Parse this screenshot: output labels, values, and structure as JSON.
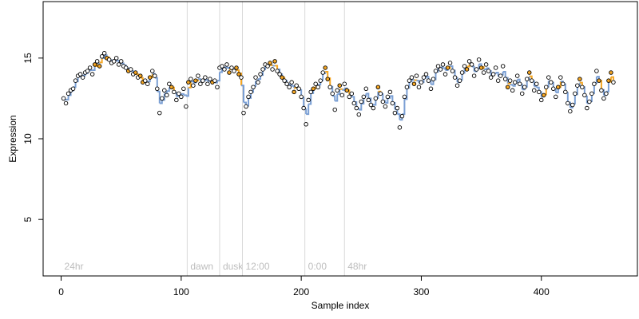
{
  "chart_data": {
    "type": "scatter",
    "xlabel": "Sample index",
    "ylabel": "Expression",
    "xlim": [
      -15,
      480
    ],
    "ylim": [
      1.5,
      18.5
    ],
    "x_ticks": [
      0,
      100,
      200,
      300,
      400
    ],
    "y_ticks": [
      5,
      10,
      15
    ],
    "grid": false,
    "colors": {
      "point_stroke": "#000000",
      "point_fill": "#ffffff",
      "point_fill_highlight": "#f5a623",
      "fit_line": "#7a9fd4",
      "fit_line_highlight": "#f5a623",
      "section_line": "#d9d9d9",
      "section_label": "#bdbdbd"
    },
    "sections": [
      {
        "label": "24hr",
        "x": 0
      },
      {
        "label": "dawn",
        "x": 105
      },
      {
        "label": "dusk",
        "x": 132
      },
      {
        "label": "12:00",
        "x": 151
      },
      {
        "label": "0:00",
        "x": 203
      },
      {
        "label": "48hr",
        "x": 236
      }
    ],
    "series": [
      {
        "points": [
          [
            2,
            12.5
          ],
          [
            4,
            12.2
          ],
          [
            6,
            12.8
          ],
          [
            8,
            13.0
          ],
          [
            10,
            13.1
          ],
          [
            12,
            13.6
          ],
          [
            14,
            13.9
          ],
          [
            16,
            14.0
          ],
          [
            18,
            13.8
          ],
          [
            20,
            14.1
          ],
          [
            22,
            14.2
          ],
          [
            24,
            14.4
          ],
          [
            26,
            14.0
          ],
          [
            28,
            14.6
          ],
          [
            30,
            14.8
          ],
          [
            32,
            14.5
          ],
          [
            34,
            15.1
          ],
          [
            36,
            15.3
          ],
          [
            38,
            15.0
          ],
          [
            40,
            14.9
          ],
          [
            42,
            14.7
          ],
          [
            44,
            14.8
          ],
          [
            46,
            15.0
          ],
          [
            48,
            14.6
          ],
          [
            50,
            14.8
          ],
          [
            52,
            14.5
          ],
          [
            54,
            14.4
          ],
          [
            56,
            14.2
          ],
          [
            58,
            14.3
          ],
          [
            60,
            14.0
          ],
          [
            62,
            14.1
          ],
          [
            64,
            13.8
          ],
          [
            66,
            13.9
          ],
          [
            68,
            13.5
          ],
          [
            70,
            13.6
          ],
          [
            72,
            13.4
          ],
          [
            74,
            13.8
          ],
          [
            76,
            14.2
          ],
          [
            78,
            13.9
          ],
          [
            80,
            13.1
          ],
          [
            82,
            11.6
          ],
          [
            84,
            12.5
          ],
          [
            86,
            13.0
          ],
          [
            88,
            12.7
          ],
          [
            90,
            13.4
          ],
          [
            92,
            13.2
          ],
          [
            94,
            12.9
          ],
          [
            96,
            12.4
          ],
          [
            98,
            12.8
          ],
          [
            100,
            12.6
          ],
          [
            102,
            13.1
          ],
          [
            104,
            12.0
          ],
          [
            106,
            13.5
          ],
          [
            108,
            13.7
          ],
          [
            110,
            13.3
          ],
          [
            112,
            13.6
          ],
          [
            114,
            13.9
          ],
          [
            116,
            13.4
          ],
          [
            118,
            13.6
          ],
          [
            120,
            13.8
          ],
          [
            122,
            13.4
          ],
          [
            124,
            13.7
          ],
          [
            126,
            13.5
          ],
          [
            128,
            13.6
          ],
          [
            130,
            13.2
          ],
          [
            132,
            14.4
          ],
          [
            134,
            14.5
          ],
          [
            136,
            14.3
          ],
          [
            138,
            14.6
          ],
          [
            140,
            14.1
          ],
          [
            142,
            14.4
          ],
          [
            144,
            14.2
          ],
          [
            146,
            14.4
          ],
          [
            148,
            14.0
          ],
          [
            150,
            13.8
          ],
          [
            152,
            11.6
          ],
          [
            154,
            12.0
          ],
          [
            156,
            12.6
          ],
          [
            158,
            12.9
          ],
          [
            160,
            13.2
          ],
          [
            162,
            13.8
          ],
          [
            164,
            13.5
          ],
          [
            166,
            14.0
          ],
          [
            168,
            14.3
          ],
          [
            170,
            14.6
          ],
          [
            172,
            14.5
          ],
          [
            174,
            14.7
          ],
          [
            176,
            14.3
          ],
          [
            178,
            14.8
          ],
          [
            180,
            14.2
          ],
          [
            182,
            14.0
          ],
          [
            184,
            13.8
          ],
          [
            186,
            13.6
          ],
          [
            188,
            13.4
          ],
          [
            190,
            13.2
          ],
          [
            192,
            13.5
          ],
          [
            194,
            12.9
          ],
          [
            196,
            13.3
          ],
          [
            198,
            13.1
          ],
          [
            200,
            12.6
          ],
          [
            202,
            11.9
          ],
          [
            204,
            10.9
          ],
          [
            206,
            12.4
          ],
          [
            208,
            12.9
          ],
          [
            210,
            13.1
          ],
          [
            212,
            13.4
          ],
          [
            214,
            13.2
          ],
          [
            216,
            13.6
          ],
          [
            218,
            14.1
          ],
          [
            220,
            14.4
          ],
          [
            222,
            13.7
          ],
          [
            224,
            13.2
          ],
          [
            226,
            12.8
          ],
          [
            228,
            11.8
          ],
          [
            230,
            13.0
          ],
          [
            232,
            13.3
          ],
          [
            234,
            12.7
          ],
          [
            236,
            13.4
          ],
          [
            238,
            13.0
          ],
          [
            240,
            12.6
          ],
          [
            242,
            12.8
          ],
          [
            244,
            12.2
          ],
          [
            246,
            11.9
          ],
          [
            248,
            11.5
          ],
          [
            250,
            12.3
          ],
          [
            252,
            12.6
          ],
          [
            254,
            13.1
          ],
          [
            256,
            12.4
          ],
          [
            258,
            12.1
          ],
          [
            260,
            11.9
          ],
          [
            262,
            12.5
          ],
          [
            264,
            13.2
          ],
          [
            266,
            12.8
          ],
          [
            268,
            12.3
          ],
          [
            270,
            12.0
          ],
          [
            272,
            12.6
          ],
          [
            274,
            12.9
          ],
          [
            276,
            12.2
          ],
          [
            278,
            11.6
          ],
          [
            280,
            11.9
          ],
          [
            282,
            10.7
          ],
          [
            284,
            11.4
          ],
          [
            286,
            12.6
          ],
          [
            288,
            13.2
          ],
          [
            290,
            13.6
          ],
          [
            292,
            13.8
          ],
          [
            294,
            13.4
          ],
          [
            296,
            13.9
          ],
          [
            298,
            13.2
          ],
          [
            300,
            13.5
          ],
          [
            302,
            13.8
          ],
          [
            304,
            14.0
          ],
          [
            306,
            13.6
          ],
          [
            308,
            13.1
          ],
          [
            310,
            13.7
          ],
          [
            312,
            14.2
          ],
          [
            314,
            14.5
          ],
          [
            316,
            14.3
          ],
          [
            318,
            14.6
          ],
          [
            320,
            14.0
          ],
          [
            322,
            14.4
          ],
          [
            324,
            14.7
          ],
          [
            326,
            14.2
          ],
          [
            328,
            13.8
          ],
          [
            330,
            13.3
          ],
          [
            332,
            13.6
          ],
          [
            334,
            14.1
          ],
          [
            336,
            14.5
          ],
          [
            338,
            14.3
          ],
          [
            340,
            14.8
          ],
          [
            342,
            14.6
          ],
          [
            344,
            13.9
          ],
          [
            346,
            14.3
          ],
          [
            348,
            14.9
          ],
          [
            350,
            14.4
          ],
          [
            352,
            14.1
          ],
          [
            354,
            14.6
          ],
          [
            356,
            14.2
          ],
          [
            358,
            13.8
          ],
          [
            360,
            14.0
          ],
          [
            362,
            14.4
          ],
          [
            364,
            13.6
          ],
          [
            366,
            13.9
          ],
          [
            368,
            14.5
          ],
          [
            370,
            13.7
          ],
          [
            372,
            13.2
          ],
          [
            374,
            13.6
          ],
          [
            376,
            13.0
          ],
          [
            378,
            13.5
          ],
          [
            380,
            13.9
          ],
          [
            382,
            13.4
          ],
          [
            384,
            12.8
          ],
          [
            386,
            13.2
          ],
          [
            388,
            13.7
          ],
          [
            390,
            14.1
          ],
          [
            392,
            13.6
          ],
          [
            394,
            13.0
          ],
          [
            396,
            13.4
          ],
          [
            398,
            12.9
          ],
          [
            400,
            12.4
          ],
          [
            402,
            12.7
          ],
          [
            404,
            13.2
          ],
          [
            406,
            13.8
          ],
          [
            408,
            13.5
          ],
          [
            410,
            13.1
          ],
          [
            412,
            12.6
          ],
          [
            414,
            13.2
          ],
          [
            416,
            13.8
          ],
          [
            418,
            13.4
          ],
          [
            420,
            12.9
          ],
          [
            422,
            12.2
          ],
          [
            424,
            11.7
          ],
          [
            426,
            12.1
          ],
          [
            428,
            12.8
          ],
          [
            430,
            13.3
          ],
          [
            432,
            13.7
          ],
          [
            434,
            13.2
          ],
          [
            436,
            12.7
          ],
          [
            438,
            11.9
          ],
          [
            440,
            12.3
          ],
          [
            442,
            12.8
          ],
          [
            444,
            13.4
          ],
          [
            446,
            14.2
          ],
          [
            448,
            13.6
          ],
          [
            450,
            13.0
          ],
          [
            452,
            12.5
          ],
          [
            454,
            12.8
          ],
          [
            456,
            13.6
          ],
          [
            458,
            14.1
          ],
          [
            460,
            13.5
          ]
        ],
        "highlight_indices": [
          13,
          15,
          18,
          27,
          30,
          32,
          33,
          36,
          45,
          52,
          55,
          62,
          69,
          72,
          73,
          86,
          88,
          91,
          96,
          104,
          109,
          110,
          115,
          118,
          131,
          146,
          160,
          168,
          174,
          185,
          194,
          200,
          206,
          215,
          223,
          228,
          236,
          227
        ]
      }
    ]
  }
}
